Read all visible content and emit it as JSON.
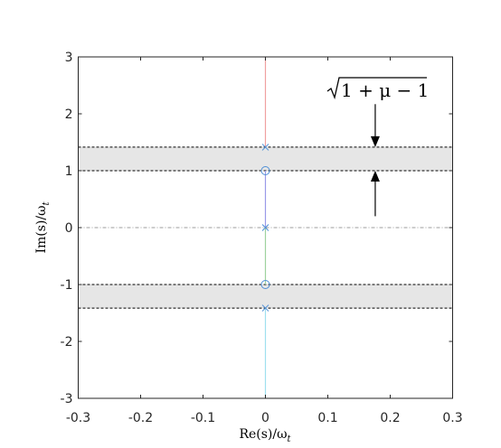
{
  "chart_data": {
    "type": "scatter",
    "title": "",
    "xlabel": {
      "main": "Re(s)/ω",
      "sub": "t"
    },
    "ylabel": {
      "main": "Im(s)/ω",
      "sub": "t"
    },
    "xlim": [
      -0.3,
      0.3
    ],
    "ylim": [
      -3,
      3
    ],
    "xticks": [
      -0.3,
      -0.2,
      -0.1,
      0,
      0.1,
      0.2,
      0.3
    ],
    "yticks": [
      -3,
      -2,
      -1,
      0,
      1,
      2,
      3
    ],
    "xtick_labels": [
      "-0.3",
      "-0.2",
      "-0.1",
      "0",
      "0.1",
      "0.2",
      "0.3"
    ],
    "ytick_labels": [
      "-3",
      "-2",
      "-1",
      "0",
      "1",
      "2",
      "3"
    ],
    "grid": false,
    "colors": {
      "band": "#e6e6e6",
      "marker": "#4f8fd6",
      "locus_upper": "#f0a0a0",
      "locus_middle_upper": "#9a9ae8",
      "locus_middle_lower": "#9ed29e",
      "locus_lower": "#9fe0ef"
    },
    "poles": [
      {
        "x": 0,
        "y": 1.414
      },
      {
        "x": 0,
        "y": 0
      },
      {
        "x": 0,
        "y": -1.414
      }
    ],
    "zeros": [
      {
        "x": 0,
        "y": 1
      },
      {
        "x": 0,
        "y": -1
      }
    ],
    "loci": [
      {
        "color_key": "locus_upper",
        "x": [
          0,
          0
        ],
        "y": [
          1.414,
          3
        ]
      },
      {
        "color_key": "locus_middle_upper",
        "x": [
          0,
          0
        ],
        "y": [
          0,
          1
        ]
      },
      {
        "color_key": "locus_middle_lower",
        "x": [
          0,
          0
        ],
        "y": [
          -1,
          0
        ]
      },
      {
        "color_key": "locus_lower",
        "x": [
          0,
          0
        ],
        "y": [
          -3,
          -1.414
        ]
      }
    ],
    "bands": [
      {
        "y": [
          1,
          1.414
        ]
      },
      {
        "y": [
          -1.414,
          -1
        ]
      }
    ],
    "reference_lines": [
      {
        "y": 1.414,
        "style": "dashed"
      },
      {
        "y": 1,
        "style": "dashed"
      },
      {
        "y": -1,
        "style": "dashed"
      },
      {
        "y": -1.414,
        "style": "dashed"
      },
      {
        "y": 0,
        "style": "dash-dot"
      }
    ],
    "annotation": {
      "text_parts": {
        "radicand": "1 + μ",
        "rest": " − 1"
      },
      "arrow_x": 0.176,
      "arrow_down": {
        "from_y": 2.17,
        "to_y": 1.414
      },
      "arrow_up": {
        "from_y": 0.2,
        "to_y": 1
      }
    }
  }
}
